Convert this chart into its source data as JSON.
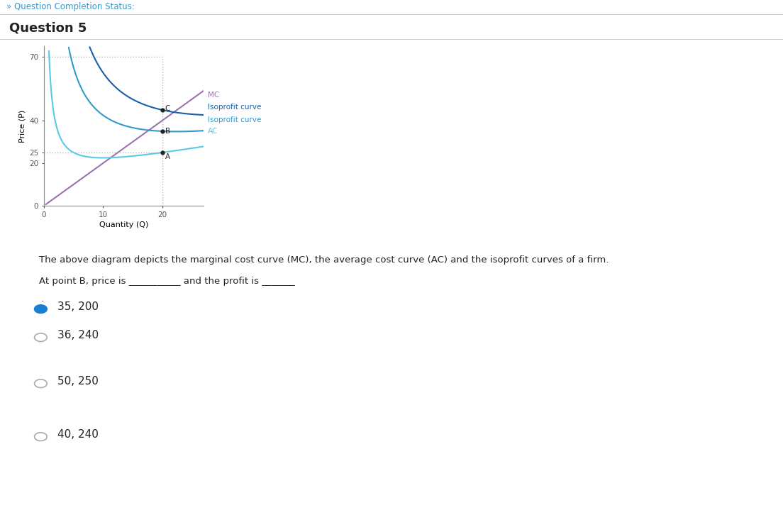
{
  "title": "Question 5",
  "header": "» Question Completion Status:",
  "xlabel": "Quantity (Q)",
  "ylabel": "Price (P)",
  "xlim": [
    0,
    27
  ],
  "ylim": [
    0,
    75
  ],
  "yticks": [
    0,
    20,
    25,
    40,
    70
  ],
  "xticks": [
    0,
    10,
    20
  ],
  "mc_color": "#9b72b0",
  "ac_color": "#5bc8e8",
  "isoprofit_c_color": "#1a5fa8",
  "isoprofit_b_color": "#3399cc",
  "point_color": "#222222",
  "dotted_line_color": "#bbbbbb",
  "bg_color": "#ffffff",
  "text_color": "#222222",
  "description": "The above diagram depicts the marginal cost curve (MC), the average cost curve (AC) and the isoprofit curves of a firm.",
  "question_text": "At point B, price is ___________ and the profit is _______",
  "dot_text": ".",
  "options": [
    "35, 200",
    "36, 240",
    "50, 250",
    "40, 240"
  ],
  "selected_option": 0,
  "radio_selected_color": "#1a7fd4",
  "radio_unselected_color": "#aaaaaa",
  "header_text_color": "#3399cc",
  "title_text_color": "#222222",
  "separator_color": "#cccccc"
}
